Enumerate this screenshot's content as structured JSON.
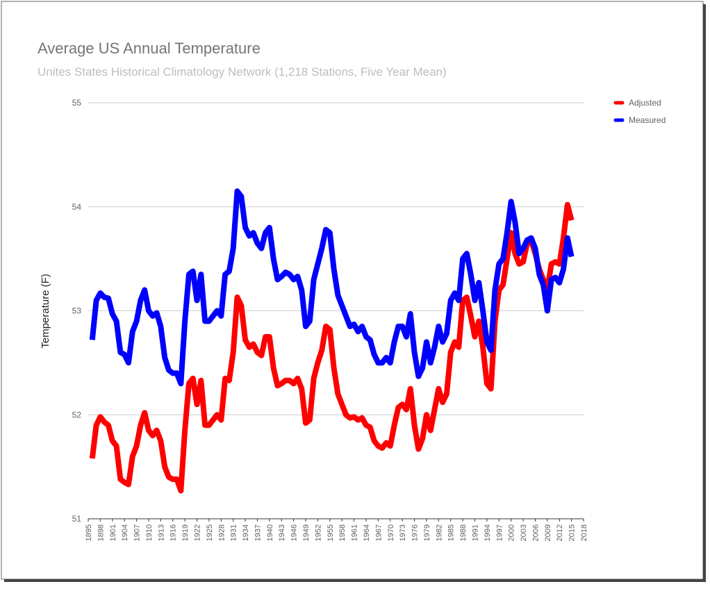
{
  "chart_data": {
    "type": "line",
    "title": "Average US Annual Temperature",
    "subtitle": "Unites States Historical Climatology Network (1,218 Stations, Five Year Mean)",
    "y_label": "Temperature (F)",
    "x": [
      1896,
      1897,
      1898,
      1899,
      1900,
      1901,
      1902,
      1903,
      1904,
      1905,
      1906,
      1907,
      1908,
      1909,
      1910,
      1911,
      1912,
      1913,
      1914,
      1915,
      1916,
      1917,
      1918,
      1919,
      1920,
      1921,
      1922,
      1923,
      1924,
      1925,
      1926,
      1927,
      1928,
      1929,
      1930,
      1931,
      1932,
      1933,
      1934,
      1935,
      1936,
      1937,
      1938,
      1939,
      1940,
      1941,
      1942,
      1943,
      1944,
      1945,
      1946,
      1947,
      1948,
      1949,
      1950,
      1951,
      1952,
      1953,
      1954,
      1955,
      1956,
      1957,
      1958,
      1959,
      1960,
      1961,
      1962,
      1963,
      1964,
      1965,
      1966,
      1967,
      1968,
      1969,
      1970,
      1971,
      1972,
      1973,
      1974,
      1975,
      1976,
      1977,
      1978,
      1979,
      1980,
      1981,
      1982,
      1983,
      1984,
      1985,
      1986,
      1987,
      1988,
      1989,
      1990,
      1991,
      1992,
      1993,
      1994,
      1995,
      1996,
      1997,
      1998,
      1999,
      2000,
      2001,
      2002,
      2003,
      2004,
      2005,
      2006,
      2007,
      2008,
      2009,
      2010,
      2011,
      2012,
      2013,
      2014,
      2015
    ],
    "series": [
      {
        "name": "Adjusted",
        "color": "#ff0000",
        "values": [
          51.58,
          51.9,
          51.98,
          51.93,
          51.9,
          51.75,
          51.7,
          51.38,
          51.35,
          51.33,
          51.6,
          51.7,
          51.9,
          52.02,
          51.85,
          51.8,
          51.85,
          51.75,
          51.5,
          51.4,
          51.38,
          51.38,
          51.27,
          51.85,
          52.3,
          52.35,
          52.1,
          52.33,
          51.9,
          51.9,
          51.95,
          52.0,
          51.95,
          52.35,
          52.33,
          52.6,
          53.13,
          53.05,
          52.72,
          52.65,
          52.68,
          52.6,
          52.57,
          52.75,
          52.75,
          52.45,
          52.28,
          52.3,
          52.33,
          52.33,
          52.3,
          52.35,
          52.25,
          51.92,
          51.95,
          52.35,
          52.5,
          52.62,
          52.85,
          52.82,
          52.45,
          52.2,
          52.1,
          52.0,
          51.97,
          51.98,
          51.95,
          51.97,
          51.9,
          51.88,
          51.75,
          51.7,
          51.68,
          51.73,
          51.7,
          51.9,
          52.07,
          52.1,
          52.05,
          52.25,
          51.9,
          51.67,
          51.77,
          52.0,
          51.85,
          52.05,
          52.25,
          52.12,
          52.2,
          52.6,
          52.7,
          52.65,
          53.1,
          53.13,
          52.95,
          52.75,
          52.9,
          52.65,
          52.3,
          52.25,
          52.9,
          53.2,
          53.25,
          53.5,
          53.75,
          53.55,
          53.45,
          53.47,
          53.65,
          53.67,
          53.55,
          53.4,
          53.3,
          53.2,
          53.45,
          53.47,
          53.45,
          53.7,
          54.02,
          53.87
        ]
      },
      {
        "name": "Measured",
        "color": "#0000ff",
        "values": [
          52.72,
          53.1,
          53.17,
          53.13,
          53.12,
          52.97,
          52.9,
          52.6,
          52.58,
          52.5,
          52.8,
          52.9,
          53.1,
          53.2,
          53.0,
          52.95,
          52.98,
          52.85,
          52.55,
          52.43,
          52.4,
          52.4,
          52.3,
          52.9,
          53.35,
          53.38,
          53.1,
          53.35,
          52.9,
          52.9,
          52.95,
          53.0,
          52.95,
          53.35,
          53.38,
          53.6,
          54.15,
          54.1,
          53.8,
          53.72,
          53.75,
          53.65,
          53.6,
          53.75,
          53.8,
          53.5,
          53.3,
          53.33,
          53.37,
          53.35,
          53.3,
          53.33,
          53.2,
          52.85,
          52.9,
          53.3,
          53.45,
          53.6,
          53.78,
          53.75,
          53.4,
          53.15,
          53.05,
          52.95,
          52.85,
          52.87,
          52.8,
          52.85,
          52.75,
          52.72,
          52.58,
          52.5,
          52.5,
          52.55,
          52.5,
          52.7,
          52.85,
          52.85,
          52.75,
          52.97,
          52.6,
          52.37,
          52.45,
          52.7,
          52.5,
          52.65,
          52.85,
          52.7,
          52.78,
          53.1,
          53.17,
          53.1,
          53.5,
          53.55,
          53.35,
          53.1,
          53.27,
          53.0,
          52.7,
          52.62,
          53.2,
          53.45,
          53.5,
          53.75,
          54.05,
          53.85,
          53.55,
          53.6,
          53.68,
          53.7,
          53.6,
          53.35,
          53.25,
          53.0,
          53.3,
          53.32,
          53.27,
          53.4,
          53.7,
          53.52
        ]
      }
    ],
    "xlim": [
      1895,
      2018
    ],
    "xticks": [
      1895,
      1898,
      1901,
      1904,
      1907,
      1910,
      1913,
      1916,
      1919,
      1922,
      1925,
      1928,
      1931,
      1934,
      1937,
      1940,
      1943,
      1946,
      1949,
      1952,
      1955,
      1958,
      1961,
      1964,
      1967,
      1970,
      1973,
      1976,
      1979,
      1982,
      1985,
      1988,
      1991,
      1994,
      1997,
      2000,
      2003,
      2006,
      2009,
      2012,
      2015,
      2018
    ],
    "ylim": [
      51,
      55
    ],
    "yticks": [
      51,
      52,
      53,
      54,
      55
    ],
    "grid": true,
    "legend": "right"
  }
}
